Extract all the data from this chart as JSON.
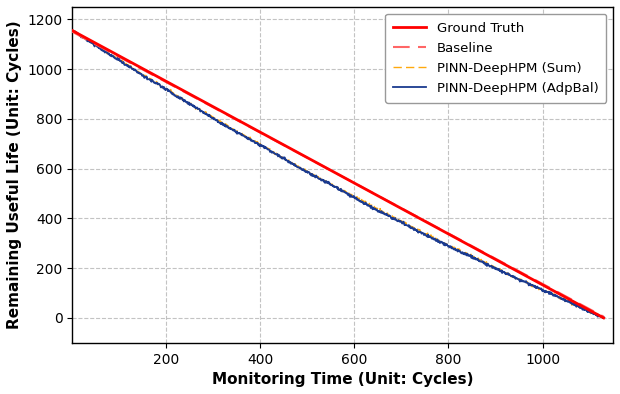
{
  "title": "",
  "xlabel": "Monitoring Time (Unit: Cycles)",
  "ylabel": "Remaining Useful Life (Unit: Cycles)",
  "xlim": [
    0,
    1150
  ],
  "ylim": [
    -100,
    1250
  ],
  "yticks": [
    0,
    200,
    400,
    600,
    800,
    1000,
    1200
  ],
  "xticks": [
    200,
    400,
    600,
    800,
    1000
  ],
  "colors": {
    "ground_truth": "#FF0000",
    "baseline": "#FF6666",
    "pinn_sum": "#FFA500",
    "pinn_adpbal": "#1A3A8F"
  },
  "legend_labels": [
    "Ground Truth",
    "Baseline",
    "PINN-DeepHPM (Sum)",
    "PINN-DeepHPM (AdpBal)"
  ],
  "noise_seed": 42,
  "n_points": 1130,
  "figsize": [
    6.2,
    3.94
  ],
  "dpi": 100,
  "gt_start_y": 1155,
  "gt_end_y": 0,
  "baseline_start_y": 1150,
  "baseline_end_y": 5
}
